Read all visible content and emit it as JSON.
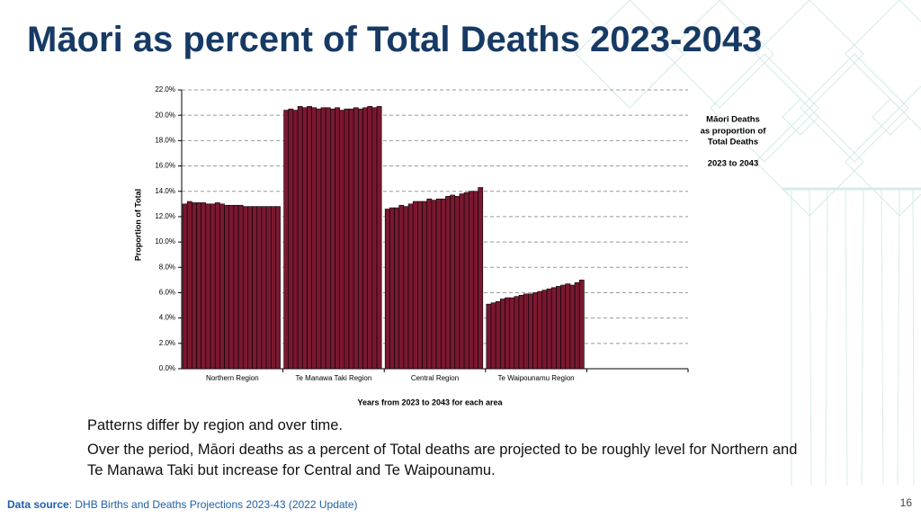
{
  "title": "Māori as percent of Total Deaths 2023-2043",
  "chart_data": {
    "type": "grouped_bar",
    "ylabel": "Proportion of Total",
    "xlabel": "Years from 2023 to 2043 for each area",
    "annotation": [
      "Māori Deaths",
      "as proportion of",
      "Total Deaths",
      "2023 to 2043"
    ],
    "categories": [
      "Northern Region",
      "Te Manawa Taki Region",
      "Central Region",
      "Te Waipounamu Region",
      null
    ],
    "values": [
      [
        13.0,
        13.2,
        13.1,
        13.1,
        13.1,
        13.0,
        13.0,
        13.1,
        13.0,
        12.9,
        12.9,
        12.9,
        12.9,
        12.8,
        12.8,
        12.8,
        12.8,
        12.8,
        12.8,
        12.8,
        12.8
      ],
      [
        20.4,
        20.5,
        20.4,
        20.7,
        20.6,
        20.7,
        20.6,
        20.5,
        20.6,
        20.6,
        20.5,
        20.6,
        20.4,
        20.5,
        20.5,
        20.6,
        20.5,
        20.6,
        20.7,
        20.6,
        20.7
      ],
      [
        12.6,
        12.7,
        12.7,
        12.9,
        12.8,
        13.0,
        13.2,
        13.2,
        13.2,
        13.4,
        13.3,
        13.4,
        13.4,
        13.6,
        13.7,
        13.6,
        13.8,
        13.9,
        14.0,
        14.0,
        14.3
      ],
      [
        5.1,
        5.2,
        5.3,
        5.5,
        5.6,
        5.6,
        5.7,
        5.8,
        5.9,
        5.9,
        6.0,
        6.1,
        6.2,
        6.3,
        6.4,
        6.5,
        6.6,
        6.7,
        6.6,
        6.8,
        7.0
      ],
      []
    ],
    "color": "#7a1830",
    "ylim": [
      0,
      22
    ],
    "yticks": [
      {
        "value": 0,
        "label": "0.0%"
      },
      {
        "value": 2,
        "label": "2.0%"
      },
      {
        "value": 4,
        "label": "4.0%"
      },
      {
        "value": 6,
        "label": "6.0%"
      },
      {
        "value": 8,
        "label": "8.0%"
      },
      {
        "value": 10,
        "label": "10.0%"
      },
      {
        "value": 12,
        "label": "12.0%"
      },
      {
        "value": 14,
        "label": "14.0%"
      },
      {
        "value": 16,
        "label": "16.0%"
      },
      {
        "value": 18,
        "label": "18.0%"
      },
      {
        "value": 20,
        "label": "20.0%"
      },
      {
        "value": 22,
        "label": "22.0%"
      }
    ],
    "grid": true
  },
  "body": [
    "Patterns differ by region and over time.",
    "Over the period, Māori deaths as a percent of Total deaths are projected to be roughly level for Northern and Te Manawa Taki but increase for Central and Te Waipounamu."
  ],
  "source": {
    "label": "Data source",
    "text": ": DHB Births and Deaths Projections 2023-43 (2022 Update)"
  },
  "page_number": "16"
}
